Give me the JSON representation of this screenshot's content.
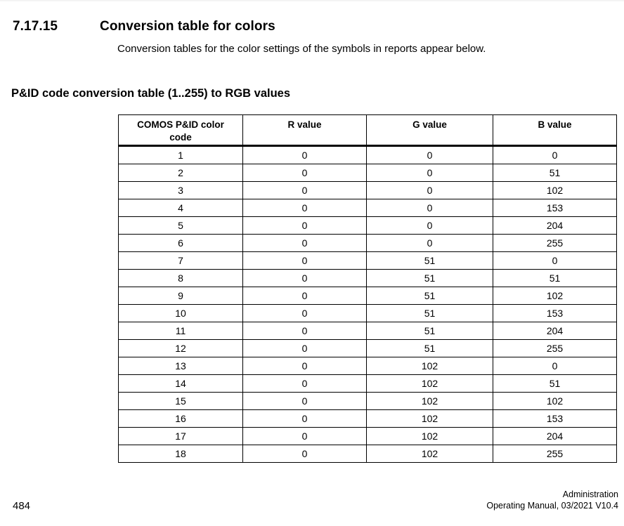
{
  "page": {
    "section_number": "7.17.15",
    "section_title": "Conversion table for colors",
    "intro": "Conversion tables for the color settings of the symbols in reports appear below.",
    "table_heading": "P&ID code conversion table (1..255) to RGB values"
  },
  "table": {
    "headers": [
      "COMOS P&ID color code",
      "R value",
      "G value",
      "B value"
    ],
    "rows": [
      [
        "1",
        "0",
        "0",
        "0"
      ],
      [
        "2",
        "0",
        "0",
        "51"
      ],
      [
        "3",
        "0",
        "0",
        "102"
      ],
      [
        "4",
        "0",
        "0",
        "153"
      ],
      [
        "5",
        "0",
        "0",
        "204"
      ],
      [
        "6",
        "0",
        "0",
        "255"
      ],
      [
        "7",
        "0",
        "51",
        "0"
      ],
      [
        "8",
        "0",
        "51",
        "51"
      ],
      [
        "9",
        "0",
        "51",
        "102"
      ],
      [
        "10",
        "0",
        "51",
        "153"
      ],
      [
        "11",
        "0",
        "51",
        "204"
      ],
      [
        "12",
        "0",
        "51",
        "255"
      ],
      [
        "13",
        "0",
        "102",
        "0"
      ],
      [
        "14",
        "0",
        "102",
        "51"
      ],
      [
        "15",
        "0",
        "102",
        "102"
      ],
      [
        "16",
        "0",
        "102",
        "153"
      ],
      [
        "17",
        "0",
        "102",
        "204"
      ],
      [
        "18",
        "0",
        "102",
        "255"
      ]
    ]
  },
  "footer": {
    "page_number": "484",
    "doc_title": "Administration",
    "doc_edition": "Operating Manual, 03/2021 V10.4"
  },
  "colors": {
    "text": "#000000",
    "table_border": "#000000",
    "background": "#ffffff"
  }
}
